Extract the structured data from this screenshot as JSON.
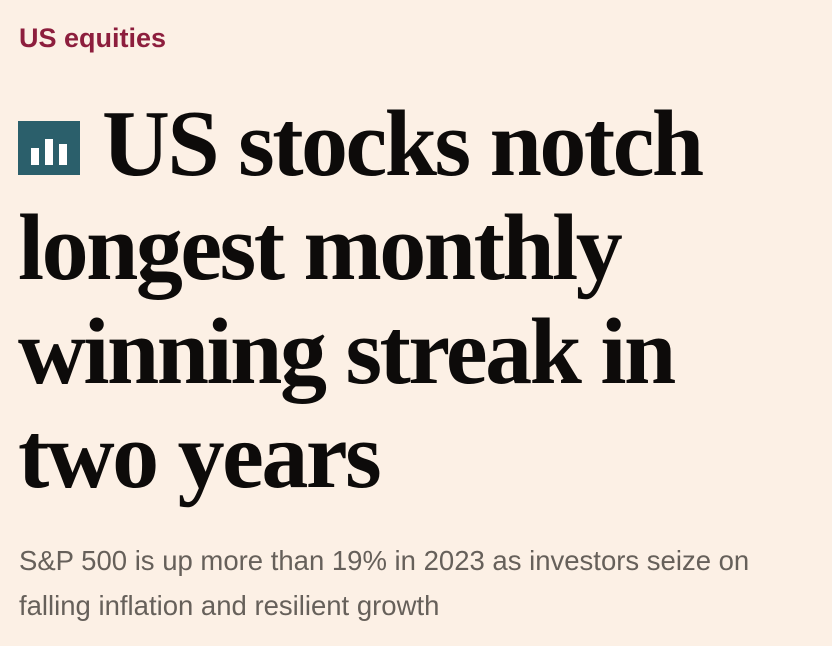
{
  "topic": {
    "label": "US equities",
    "color": "#8d1e3d"
  },
  "article": {
    "type_icon": "bar-chart-icon",
    "type_icon_color": "#2b5f6b",
    "headline": "US stocks notch longest monthly winning streak in two years",
    "standfirst": "S&P 500 is up more than 19% in 2023 as investors seize on falling inflation and resilient growth"
  },
  "colors": {
    "background": "#fcf0e5",
    "headline_text": "#0d0b0a",
    "standfirst_text": "#66605a"
  }
}
